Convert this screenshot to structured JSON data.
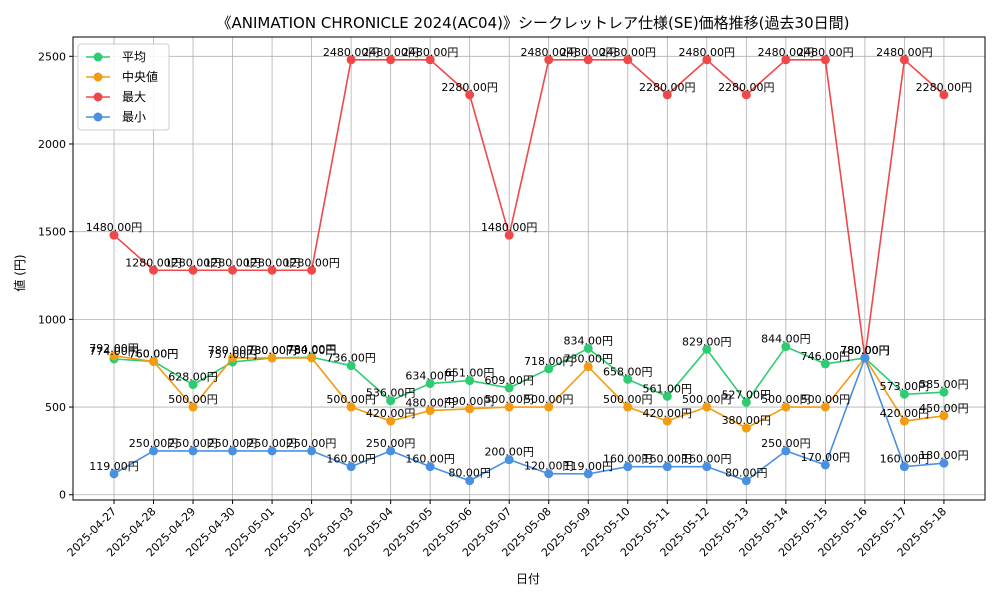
{
  "chart_data": {
    "type": "line",
    "title": "《ANIMATION CHRONICLE 2024(AC04)》シークレットレア仕様(SE)価格推移(過去30日間)",
    "xlabel": "日付",
    "ylabel": "値 (円)",
    "ylim": [
      -30,
      2610
    ],
    "yticks": [
      0,
      500,
      1000,
      1500,
      2000,
      2500
    ],
    "grid": true,
    "legend_position": "top-left",
    "label_suffix": "円",
    "categories": [
      "2025-04-27",
      "2025-04-28",
      "2025-04-29",
      "2025-04-30",
      "2025-05-01",
      "2025-05-02",
      "2025-05-03",
      "2025-05-04",
      "2025-05-05",
      "2025-05-06",
      "2025-05-07",
      "2025-05-08",
      "2025-05-09",
      "2025-05-10",
      "2025-05-11",
      "2025-05-12",
      "2025-05-13",
      "2025-05-14",
      "2025-05-15",
      "2025-05-16",
      "2025-05-17",
      "2025-05-18"
    ],
    "series": [
      {
        "name": "平均",
        "color": "#2ecc71",
        "values": [
          774,
          760,
          628,
          757,
          780,
          784,
          736,
          536,
          634,
          651,
          609,
          718,
          834,
          658,
          561,
          829,
          527,
          844,
          746,
          780,
          573,
          585
        ]
      },
      {
        "name": "中央値",
        "color": "#f39c12",
        "values": [
          792,
          760,
          500,
          780,
          780,
          780,
          500,
          420,
          480,
          490,
          500,
          500,
          730,
          500,
          420,
          500,
          380,
          500,
          500,
          780,
          420,
          450
        ]
      },
      {
        "name": "最大",
        "color": "#f04848",
        "values": [
          1480,
          1280,
          1280,
          1280,
          1280,
          1280,
          2480,
          2480,
          2480,
          2280,
          1480,
          2480,
          2480,
          2480,
          2280,
          2480,
          2280,
          2480,
          2480,
          780,
          2480,
          2280
        ]
      },
      {
        "name": "最小",
        "color": "#4a90e2",
        "values": [
          119,
          250,
          250,
          250,
          250,
          250,
          160,
          250,
          160,
          80,
          200,
          120,
          119,
          160,
          160,
          160,
          80,
          250,
          170,
          780,
          160,
          180
        ]
      }
    ]
  }
}
